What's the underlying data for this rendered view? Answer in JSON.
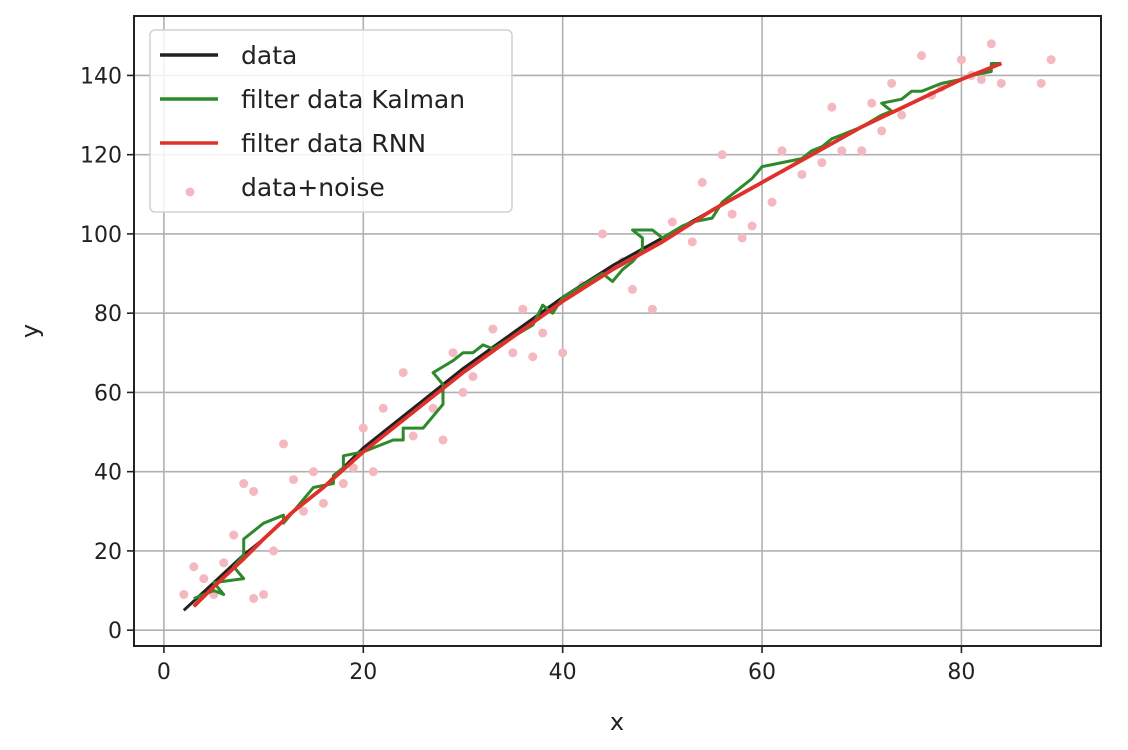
{
  "chart_data": {
    "type": "line",
    "title": "",
    "xlabel": "x",
    "ylabel": "y",
    "xlim": [
      -3,
      94
    ],
    "ylim": [
      -4,
      155
    ],
    "x_ticks": [
      0,
      20,
      40,
      60,
      80
    ],
    "y_ticks": [
      0,
      20,
      40,
      60,
      80,
      100,
      120,
      140
    ],
    "grid": true,
    "legend_position": "top-left",
    "series": [
      {
        "name": "data",
        "kind": "line",
        "color": "#222222",
        "points": [
          [
            2,
            5
          ],
          [
            5,
            12
          ],
          [
            8,
            19
          ],
          [
            10,
            23
          ],
          [
            13,
            30
          ],
          [
            16,
            36
          ],
          [
            20,
            46
          ],
          [
            25,
            56
          ],
          [
            30,
            66
          ],
          [
            35,
            75
          ],
          [
            40,
            84
          ],
          [
            45,
            92
          ],
          [
            50,
            99
          ],
          [
            55,
            106
          ],
          [
            60,
            113
          ],
          [
            65,
            120
          ],
          [
            70,
            127
          ],
          [
            75,
            133
          ],
          [
            80,
            139
          ],
          [
            84,
            143
          ]
        ]
      },
      {
        "name": "filter data Kalman",
        "kind": "line",
        "color": "#2c8a2c",
        "points": [
          [
            3,
            8
          ],
          [
            5,
            10
          ],
          [
            6,
            9
          ],
          [
            5,
            12
          ],
          [
            8,
            13
          ],
          [
            7,
            16
          ],
          [
            8,
            19
          ],
          [
            8,
            23
          ],
          [
            10,
            27
          ],
          [
            12,
            29
          ],
          [
            12,
            27
          ],
          [
            13,
            30
          ],
          [
            15,
            36
          ],
          [
            17,
            37
          ],
          [
            17,
            39
          ],
          [
            18,
            41
          ],
          [
            18,
            44
          ],
          [
            20,
            45
          ],
          [
            21,
            46
          ],
          [
            23,
            48
          ],
          [
            24,
            48
          ],
          [
            24,
            51
          ],
          [
            26,
            51
          ],
          [
            27,
            54
          ],
          [
            28,
            57
          ],
          [
            28,
            62
          ],
          [
            27,
            65
          ],
          [
            29,
            68
          ],
          [
            30,
            70
          ],
          [
            31,
            70
          ],
          [
            32,
            72
          ],
          [
            33,
            71
          ],
          [
            35,
            74
          ],
          [
            37,
            77
          ],
          [
            38,
            82
          ],
          [
            39,
            80
          ],
          [
            40,
            84
          ],
          [
            44,
            90
          ],
          [
            45,
            88
          ],
          [
            46,
            91
          ],
          [
            47,
            93
          ],
          [
            48,
            96
          ],
          [
            48,
            99
          ],
          [
            47,
            101
          ],
          [
            49,
            101
          ],
          [
            50,
            99
          ],
          [
            52,
            102
          ],
          [
            53,
            103
          ],
          [
            55,
            104
          ],
          [
            56,
            108
          ],
          [
            58,
            112
          ],
          [
            59,
            114
          ],
          [
            60,
            117
          ],
          [
            62,
            118
          ],
          [
            64,
            119
          ],
          [
            65,
            121
          ],
          [
            66,
            122
          ],
          [
            67,
            124
          ],
          [
            68,
            125
          ],
          [
            70,
            127
          ],
          [
            72,
            130
          ],
          [
            73,
            131
          ],
          [
            72,
            133
          ],
          [
            74,
            134
          ],
          [
            75,
            136
          ],
          [
            76,
            136
          ],
          [
            78,
            138
          ],
          [
            80,
            139
          ],
          [
            81,
            140
          ],
          [
            83,
            141
          ],
          [
            83,
            143
          ],
          [
            84,
            143
          ]
        ]
      },
      {
        "name": "filter data RNN",
        "kind": "line",
        "color": "#e0302a",
        "points": [
          [
            3,
            6
          ],
          [
            5,
            11
          ],
          [
            8,
            18
          ],
          [
            10,
            23
          ],
          [
            13,
            30
          ],
          [
            16,
            36
          ],
          [
            20,
            45
          ],
          [
            25,
            55
          ],
          [
            30,
            65
          ],
          [
            35,
            74
          ],
          [
            40,
            83
          ],
          [
            45,
            91
          ],
          [
            50,
            98
          ],
          [
            55,
            106
          ],
          [
            60,
            113
          ],
          [
            65,
            120
          ],
          [
            70,
            127
          ],
          [
            75,
            133
          ],
          [
            80,
            139
          ],
          [
            84,
            143
          ]
        ]
      },
      {
        "name": "data+noise",
        "kind": "scatter",
        "color": "#f4b8c0",
        "points": [
          [
            3,
            16
          ],
          [
            2,
            9
          ],
          [
            4,
            13
          ],
          [
            5,
            9
          ],
          [
            6,
            17
          ],
          [
            7,
            24
          ],
          [
            8,
            37
          ],
          [
            9,
            8
          ],
          [
            10,
            9
          ],
          [
            9,
            35
          ],
          [
            11,
            20
          ],
          [
            12,
            47
          ],
          [
            13,
            38
          ],
          [
            14,
            30
          ],
          [
            15,
            40
          ],
          [
            16,
            32
          ],
          [
            18,
            37
          ],
          [
            19,
            41
          ],
          [
            20,
            51
          ],
          [
            21,
            40
          ],
          [
            22,
            56
          ],
          [
            24,
            65
          ],
          [
            25,
            49
          ],
          [
            27,
            56
          ],
          [
            28,
            48
          ],
          [
            29,
            70
          ],
          [
            30,
            60
          ],
          [
            31,
            64
          ],
          [
            33,
            76
          ],
          [
            35,
            70
          ],
          [
            36,
            81
          ],
          [
            37,
            69
          ],
          [
            38,
            75
          ],
          [
            40,
            70
          ],
          [
            42,
            87
          ],
          [
            44,
            100
          ],
          [
            46,
            93
          ],
          [
            47,
            86
          ],
          [
            49,
            81
          ],
          [
            51,
            103
          ],
          [
            53,
            98
          ],
          [
            54,
            113
          ],
          [
            56,
            120
          ],
          [
            57,
            105
          ],
          [
            58,
            99
          ],
          [
            59,
            102
          ],
          [
            61,
            108
          ],
          [
            62,
            121
          ],
          [
            64,
            115
          ],
          [
            66,
            118
          ],
          [
            67,
            132
          ],
          [
            68,
            121
          ],
          [
            70,
            121
          ],
          [
            71,
            133
          ],
          [
            72,
            126
          ],
          [
            73,
            138
          ],
          [
            74,
            130
          ],
          [
            76,
            145
          ],
          [
            77,
            135
          ],
          [
            78,
            137
          ],
          [
            80,
            144
          ],
          [
            81,
            140
          ],
          [
            82,
            139
          ],
          [
            83,
            148
          ],
          [
            84,
            138
          ],
          [
            88,
            138
          ],
          [
            89,
            144
          ]
        ]
      }
    ],
    "legend": [
      {
        "label": "data",
        "marker": "line",
        "color": "#222222"
      },
      {
        "label": "filter data Kalman",
        "marker": "line",
        "color": "#2c8a2c"
      },
      {
        "label": "filter data RNN",
        "marker": "line",
        "color": "#e0302a"
      },
      {
        "label": "data+noise",
        "marker": "dots",
        "color": "#f4b8c0"
      }
    ]
  }
}
